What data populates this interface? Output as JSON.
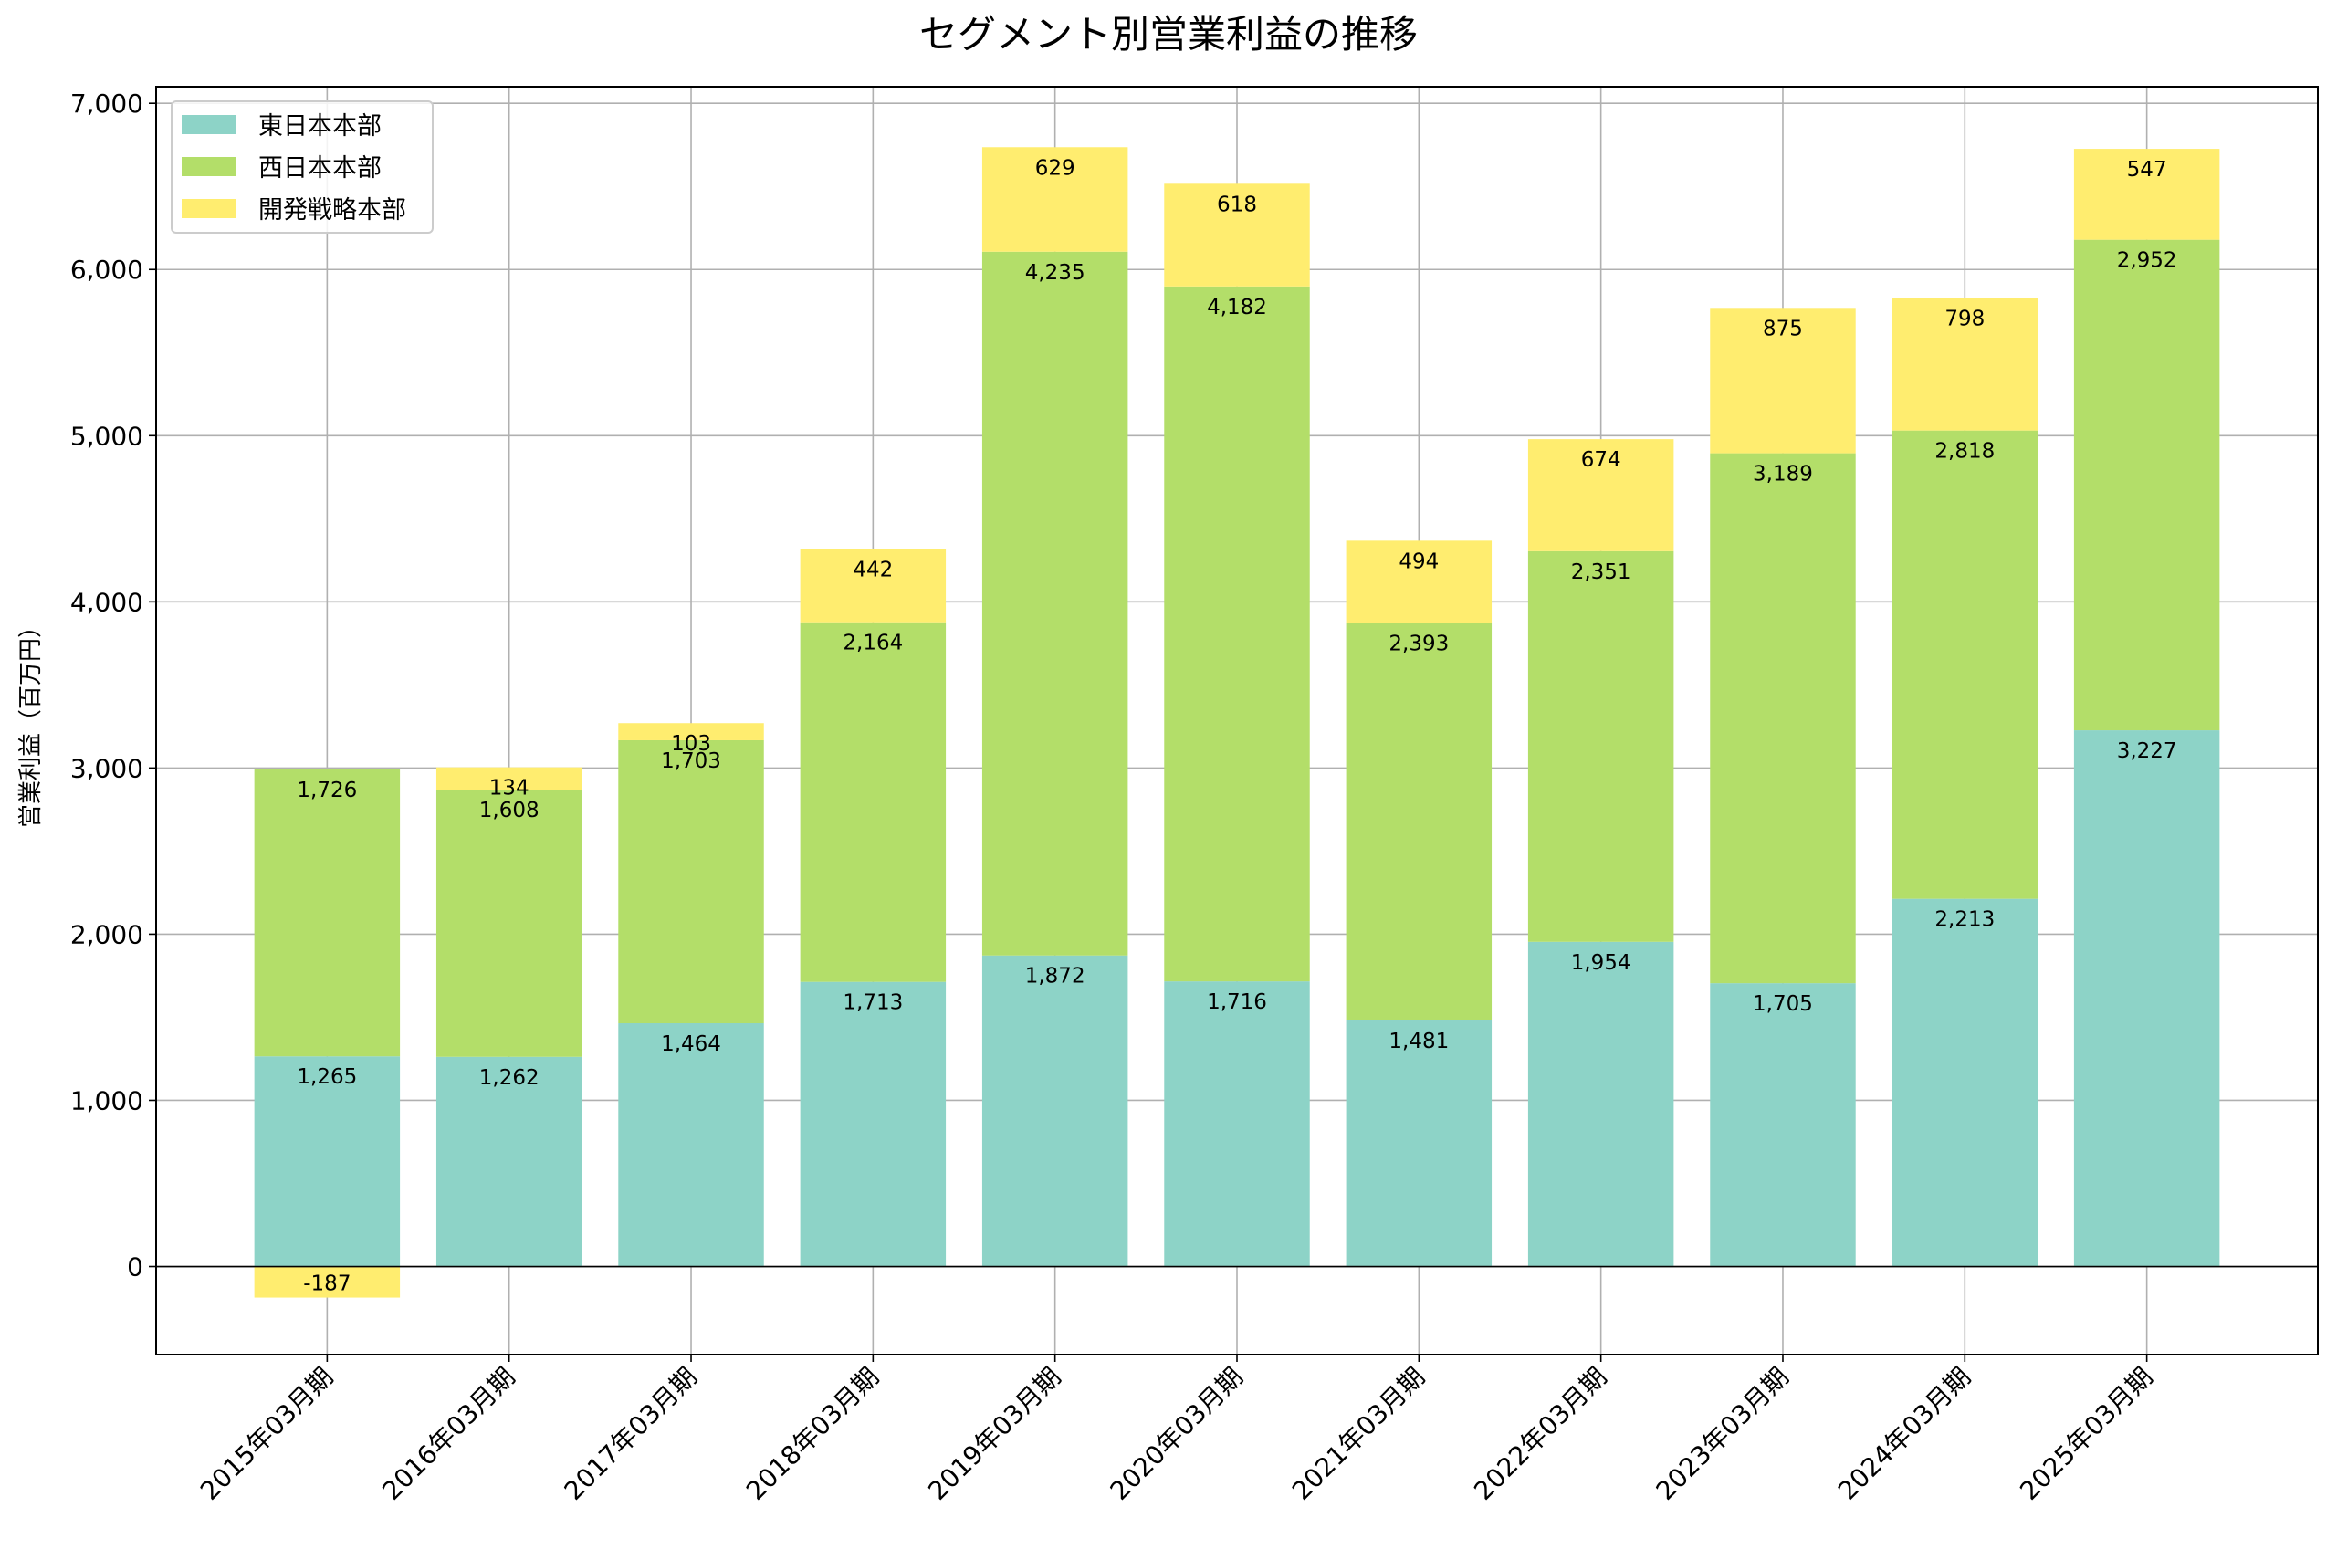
{
  "chart_data": {
    "type": "bar",
    "stacked": true,
    "title": "セグメント別営業利益の推移",
    "xlabel": "",
    "ylabel": "営業利益（百万円）",
    "ylim": [
      -530,
      7100
    ],
    "yticks": [
      0,
      1000,
      2000,
      3000,
      4000,
      5000,
      6000,
      7000
    ],
    "ytick_labels": [
      "0",
      "1,000",
      "2,000",
      "3,000",
      "4,000",
      "5,000",
      "6,000",
      "7,000"
    ],
    "grid": true,
    "legend_position": "top-left",
    "categories": [
      "2015年03月期",
      "2016年03月期",
      "2017年03月期",
      "2018年03月期",
      "2019年03月期",
      "2020年03月期",
      "2021年03月期",
      "2022年03月期",
      "2023年03月期",
      "2024年03月期",
      "2025年03月期"
    ],
    "series": [
      {
        "name": "東日本本部",
        "color": "#8dd3c7",
        "values": [
          1265,
          1262,
          1464,
          1713,
          1872,
          1716,
          1481,
          1954,
          1705,
          2213,
          3227
        ],
        "labels": [
          "1,265",
          "1,262",
          "1,464",
          "1,713",
          "1,872",
          "1,716",
          "1,481",
          "1,954",
          "1,705",
          "2,213",
          "3,227"
        ]
      },
      {
        "name": "西日本本部",
        "color": "#b3de69",
        "values": [
          1726,
          1608,
          1703,
          2164,
          4235,
          4182,
          2393,
          2351,
          3189,
          2818,
          2952
        ],
        "labels": [
          "1,726",
          "1,608",
          "1,703",
          "2,164",
          "4,235",
          "4,182",
          "2,393",
          "2,351",
          "3,189",
          "2,818",
          "2,952"
        ]
      },
      {
        "name": "開発戦略本部",
        "color": "#ffed6f",
        "values": [
          -187,
          134,
          103,
          442,
          629,
          618,
          494,
          674,
          875,
          798,
          547
        ],
        "labels": [
          "-187",
          "134",
          "103",
          "442",
          "629",
          "618",
          "494",
          "674",
          "875",
          "798",
          "547"
        ]
      }
    ]
  }
}
